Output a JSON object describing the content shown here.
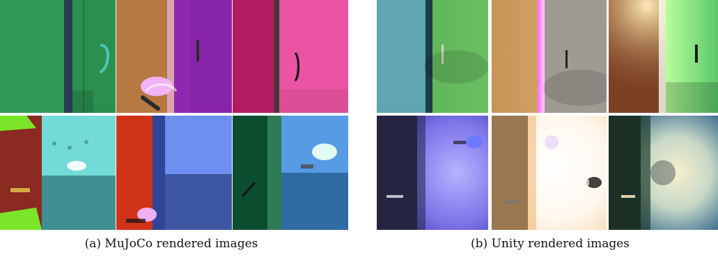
{
  "figure": {
    "captions": {
      "left": "(a) MuJoCo rendered images",
      "right": "(b) Unity rendered images"
    }
  },
  "panels": {
    "mujoco": [
      {
        "name": "door-green-teal-handle",
        "colors": {
          "door": "#2e9a55",
          "wall": "#1f6e43",
          "frame": "#2b3b55",
          "handle": "#4cc7b3"
        }
      },
      {
        "name": "door-purple-brown-wall",
        "colors": {
          "door": "#8e28b0",
          "wall": "#b87842",
          "frame": "#d9a5b1",
          "handle": "#2a2a2a"
        }
      },
      {
        "name": "door-pink-magenta",
        "colors": {
          "door": "#ea54a2",
          "wall": "#b31a5f",
          "frame": "#3a3a3a",
          "handle": "#111111"
        }
      },
      {
        "name": "corridor-red-cyan",
        "colors": {
          "wall": "#8b2a20",
          "room": "#68d6d3",
          "floor": "#52b7b9",
          "accent": "#7be52a"
        }
      },
      {
        "name": "corridor-red-blue",
        "colors": {
          "wall": "#d13318",
          "room": "#6a88e6",
          "floor": "#4a6ab6",
          "accent": "#233a8a"
        }
      },
      {
        "name": "corridor-green-blue",
        "colors": {
          "wall": "#0b4d2f",
          "room": "#3c7fcc",
          "floor": "#2f6aa2",
          "accent": "#2e7c56"
        }
      }
    ],
    "unity": [
      {
        "name": "unity-door-green-teal",
        "colors": {
          "door": "#62b65a",
          "wall": "#5fa6b0",
          "frame": "#1c3d45",
          "handle": "#d6d6c2"
        }
      },
      {
        "name": "unity-door-wood-gray",
        "colors": {
          "door": "#9f9a92",
          "wall": "#d2a46b",
          "frame": "#ff6bff",
          "handle": "#222222"
        }
      },
      {
        "name": "unity-door-green-orange",
        "colors": {
          "door": "#78d36a",
          "wall": "#7b3f24",
          "frame": "#ffe9b8",
          "handle": "#1b1b1b"
        }
      },
      {
        "name": "unity-corridor-purple",
        "colors": {
          "wall": "#2c2d58",
          "room": "#7c73e8",
          "floor": "#1d1b1e",
          "accent": "#ffffff"
        }
      },
      {
        "name": "unity-corridor-bright",
        "colors": {
          "wall": "#f1b26a",
          "room": "#fff7ec",
          "floor": "#2f2f2f",
          "accent": "#e6d1ff"
        }
      },
      {
        "name": "unity-corridor-green-teal",
        "colors": {
          "wall": "#1e3b2b",
          "room": "#3d6f91",
          "floor": "#1a1a1a",
          "accent": "#f2e2b7"
        }
      }
    ]
  }
}
